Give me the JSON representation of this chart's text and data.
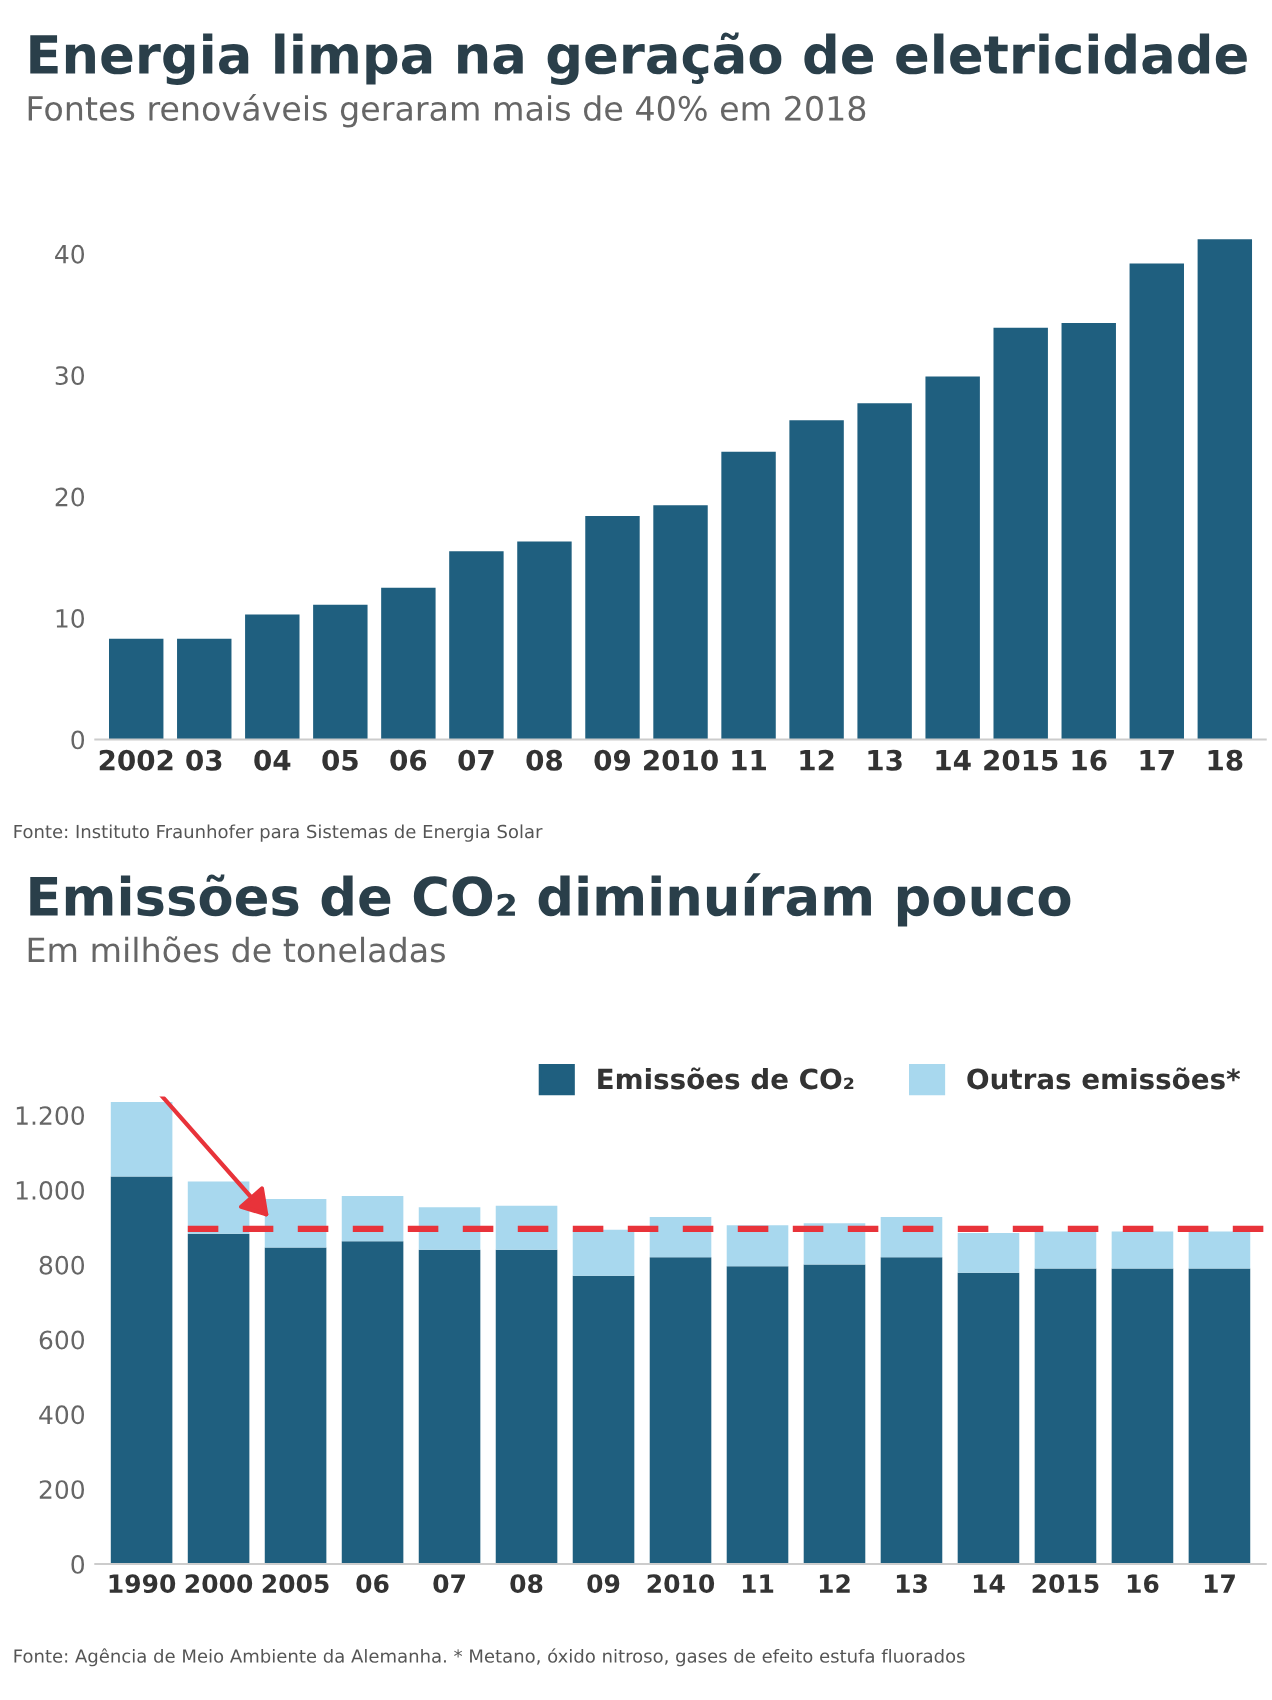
{
  "chart_data": [
    {
      "type": "bar",
      "title": "Energia limpa na geração de eletricidade",
      "subtitle": "Fontes renováveis geraram mais de 40% em 2018",
      "categories": [
        "2002",
        "03",
        "04",
        "05",
        "06",
        "07",
        "08",
        "09",
        "2010",
        "11",
        "12",
        "13",
        "14",
        "2015",
        "16",
        "17",
        "18"
      ],
      "series": [
        {
          "color": "#1f5f7f",
          "values": [
            8.3,
            8.3,
            10.3,
            11.1,
            12.5,
            15.5,
            16.3,
            18.4,
            19.3,
            23.7,
            26.3,
            27.7,
            29.9,
            33.9,
            34.3,
            39.2,
            41.2
          ]
        }
      ],
      "ylim": [
        0,
        42
      ],
      "yticks": [
        0,
        10,
        20,
        30,
        40
      ],
      "grid": false,
      "legend": false,
      "annotations": [
        "Fonte: Instituto Fraunhofer para Sistemas de Energia Solar"
      ]
    },
    {
      "type": "bar",
      "title": "Emissões de CO₂ diminuíram pouco",
      "subtitle": "Em milhões de toneladas",
      "stacked": true,
      "categories": [
        "1990",
        "2000",
        "2005",
        "06",
        "07",
        "08",
        "09",
        "2010",
        "11",
        "12",
        "13",
        "14",
        "2015",
        "16",
        "17"
      ],
      "series": [
        {
          "name": "Emissões de CO₂",
          "color": "#1f5f7f",
          "values": [
            1036,
            883,
            846,
            863,
            840,
            840,
            771,
            820,
            796,
            801,
            820,
            779,
            790,
            790,
            790
          ]
        },
        {
          "name": "Outras emissões*",
          "color": "#a8d8ee",
          "values": [
            199,
            140,
            130,
            121,
            114,
            118,
            123,
            108,
            110,
            110,
            108,
            106,
            99,
            99,
            99
          ]
        }
      ],
      "ylim": [
        0,
        1250
      ],
      "yticks": [
        0,
        200,
        400,
        600,
        800,
        {
          "value": 1000,
          "label": "1.000"
        },
        {
          "value": 1200,
          "label": "1.200"
        }
      ],
      "ref_lines": [
        {
          "axis": "y",
          "value": 896,
          "color": "#e8333a",
          "line_style": "dashed"
        }
      ],
      "grid": false,
      "legend": "top right",
      "annotations": [
        "Fonte: Agência de Meio Ambiente da Alemanha. * Metano, óxido nitroso, gases de efeito estufa fluorados"
      ]
    }
  ]
}
